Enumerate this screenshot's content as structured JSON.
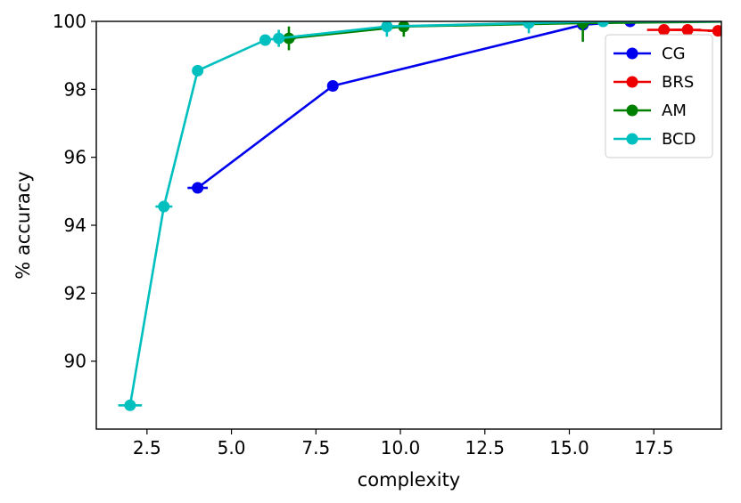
{
  "chart_data": {
    "type": "line",
    "xlabel": "complexity",
    "ylabel": "% accuracy",
    "xlim": [
      1.0,
      19.5
    ],
    "ylim": [
      88.0,
      100.0
    ],
    "xticks": [
      2.5,
      5.0,
      7.5,
      10.0,
      12.5,
      15.0,
      17.5
    ],
    "xtick_labels": [
      "2.5",
      "5.0",
      "7.5",
      "10.0",
      "12.5",
      "15.0",
      "17.5"
    ],
    "yticks": [
      90,
      92,
      94,
      96,
      98,
      100
    ],
    "ytick_labels": [
      "90",
      "92",
      "94",
      "96",
      "98",
      "100"
    ],
    "grid": false,
    "legend_position": "top-right",
    "series": [
      {
        "name": "CG",
        "color": "#0000ee",
        "points": [
          {
            "x": 4.0,
            "y": 95.1,
            "xerr": 0.3,
            "yerr": 0.0
          },
          {
            "x": 8.0,
            "y": 98.1,
            "xerr": 0.0,
            "yerr": 0.0
          },
          {
            "x": 15.4,
            "y": 99.9,
            "xerr": 0.0,
            "yerr": 0.0
          },
          {
            "x": 16.8,
            "y": 100.0,
            "xerr": 0.0,
            "yerr": 0.0
          },
          {
            "x": 20.5,
            "y": 100.0,
            "xerr": 0.0,
            "yerr": 0.0
          }
        ]
      },
      {
        "name": "BRS",
        "color": "#ee0000",
        "points": [
          {
            "x": 17.8,
            "y": 99.75,
            "xerr": 0.5,
            "yerr": 0.0
          },
          {
            "x": 18.5,
            "y": 99.75,
            "xerr": 0.4,
            "yerr": 0.0
          },
          {
            "x": 19.4,
            "y": 99.72,
            "xerr": 0.3,
            "yerr": 0.0
          },
          {
            "x": 20.5,
            "y": 99.7,
            "xerr": 0.0,
            "yerr": 0.0
          }
        ]
      },
      {
        "name": "AM",
        "color": "#008000",
        "points": [
          {
            "x": 6.7,
            "y": 99.5,
            "xerr": 0.2,
            "yerr": 0.35
          },
          {
            "x": 10.1,
            "y": 99.85,
            "xerr": 0.0,
            "yerr": 0.3
          },
          {
            "x": 15.4,
            "y": 99.95,
            "xerr": 0.0,
            "yerr": 0.55
          },
          {
            "x": 20.5,
            "y": 100.0,
            "xerr": 0.0,
            "yerr": 0.0
          }
        ]
      },
      {
        "name": "BCD",
        "color": "#00bfbf",
        "points": [
          {
            "x": 2.0,
            "y": 88.7,
            "xerr": 0.35,
            "yerr": 0.0
          },
          {
            "x": 3.0,
            "y": 94.55,
            "xerr": 0.25,
            "yerr": 0.0
          },
          {
            "x": 4.0,
            "y": 98.55,
            "xerr": 0.0,
            "yerr": 0.0
          },
          {
            "x": 6.0,
            "y": 99.45,
            "xerr": 0.0,
            "yerr": 0.0
          },
          {
            "x": 6.4,
            "y": 99.5,
            "xerr": 0.0,
            "yerr": 0.25
          },
          {
            "x": 9.6,
            "y": 99.85,
            "xerr": 0.0,
            "yerr": 0.3
          },
          {
            "x": 13.8,
            "y": 99.95,
            "xerr": 0.0,
            "yerr": 0.3
          },
          {
            "x": 16.0,
            "y": 100.0,
            "xerr": 0.0,
            "yerr": 0.0
          },
          {
            "x": 20.5,
            "y": 100.0,
            "xerr": 0.0,
            "yerr": 0.0
          }
        ]
      }
    ]
  }
}
